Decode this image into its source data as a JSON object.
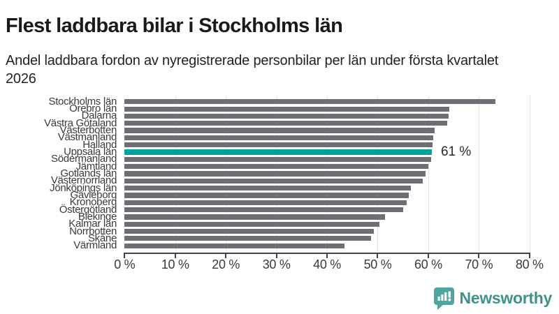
{
  "title": "Flest laddbara bilar i Stockholms län",
  "subtitle": "Andel laddbara fordon av nyregistrerade personbilar per län under första kvartalet 2026",
  "chart_data": {
    "type": "bar",
    "orientation": "horizontal",
    "title": "Flest laddbara bilar i Stockholms län",
    "subtitle": "Andel laddbara fordon av nyregistrerade personbilar per län under första kvartalet 2026",
    "xlabel": "",
    "ylabel": "",
    "xlim": [
      0,
      80
    ],
    "grid": true,
    "x_ticks": [
      "0 %",
      "10 %",
      "20 %",
      "30 %",
      "40 %",
      "50 %",
      "60 %",
      "70 %",
      "80 %"
    ],
    "categories": [
      "Stockholms län",
      "Örebro län",
      "Dalarna",
      "Västra Götaland",
      "Västerbotten",
      "Västmanland",
      "Halland",
      "Uppsala län",
      "Södermanland",
      "Jämtland",
      "Gotlands län",
      "Västernorrland",
      "Jönköpings län",
      "Gävleborg",
      "Kronoberg",
      "Östergötland",
      "Blekinge",
      "Kalmar län",
      "Norrbotten",
      "Skåne",
      "Värmland"
    ],
    "values": [
      73.2,
      64.2,
      64.0,
      63.7,
      61.3,
      61.0,
      60.8,
      60.7,
      60.5,
      60.0,
      59.4,
      58.9,
      56.6,
      56.1,
      55.8,
      55.1,
      51.5,
      50.4,
      49.3,
      48.7,
      43.4
    ],
    "bar_color": "#6e6e74",
    "highlight": {
      "category": "Uppsala län",
      "index": 7,
      "value": 60.7,
      "label": "61 %",
      "color": "#00a09b"
    },
    "colors": {
      "gridline": "#e4e4e4",
      "axis": "#41414a",
      "label_text": "#3a3a3a"
    },
    "legend": null
  },
  "branding": {
    "logo_text": "Newsworthy",
    "logo_text_color": "#40918c",
    "icon_color": "#4ea5a0",
    "icon_name": "newsworthy-bar-chart-bubble-icon"
  }
}
